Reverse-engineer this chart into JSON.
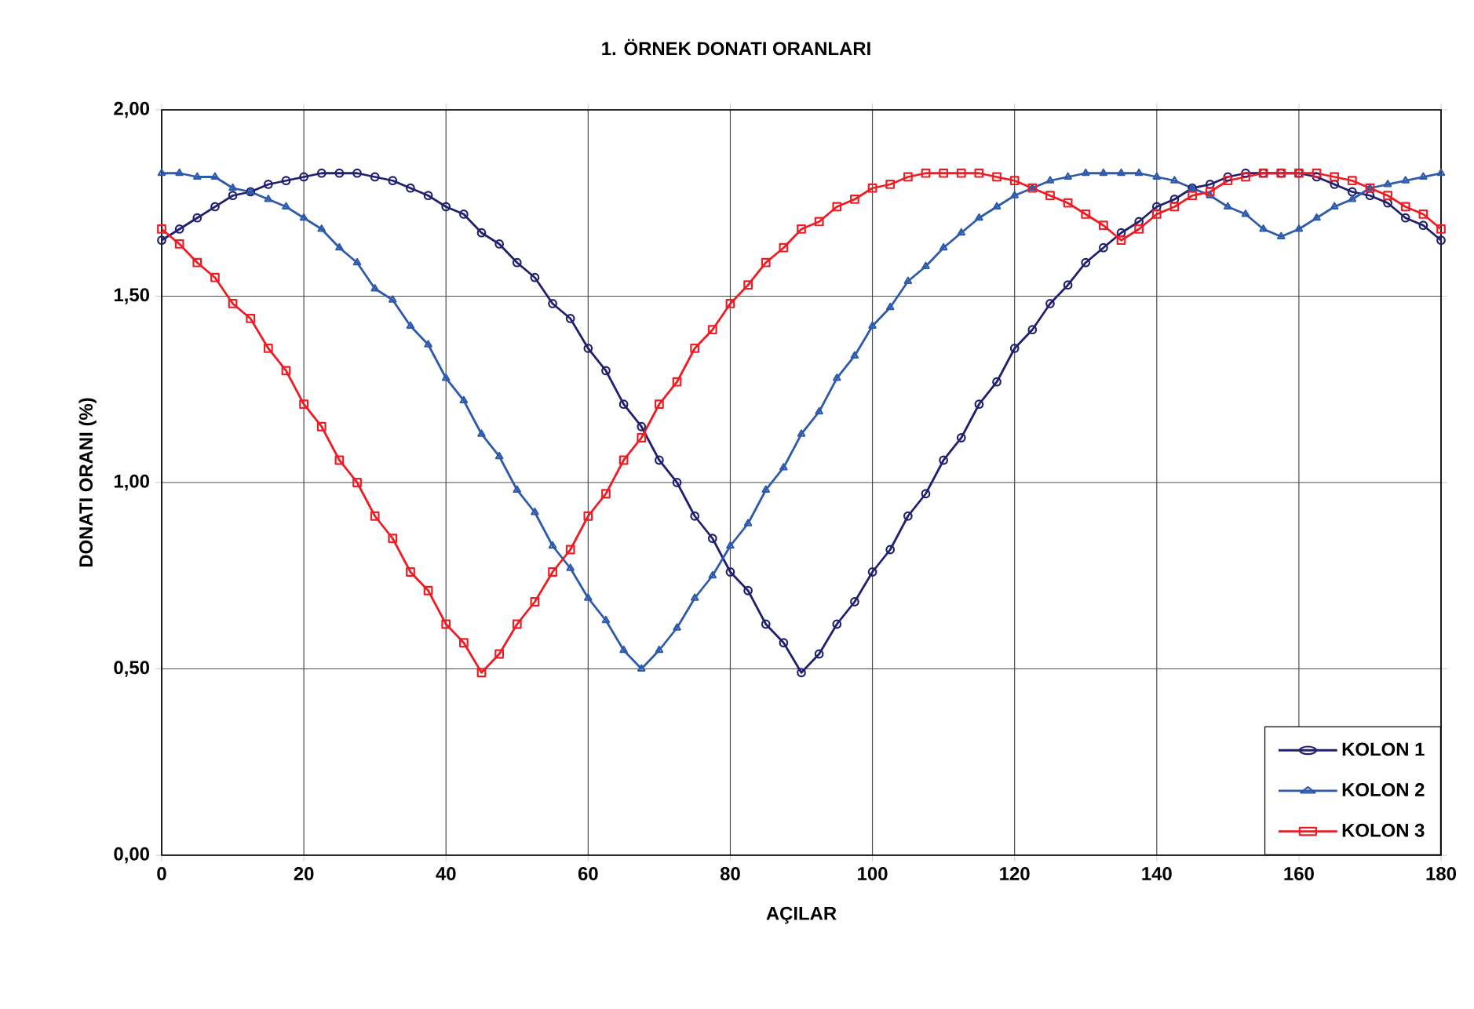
{
  "chart_data": {
    "type": "line",
    "title": "1. ÖRNEK DONATI ORANLARI",
    "xlabel": "AÇILAR",
    "ylabel": "DONATI ORANI (%)",
    "x": [
      0,
      2.5,
      5,
      7.5,
      10,
      12.5,
      15,
      17.5,
      20,
      22.5,
      25,
      27.5,
      30,
      32.5,
      35,
      37.5,
      40,
      42.5,
      45,
      47.5,
      50,
      52.5,
      55,
      57.5,
      60,
      62.5,
      65,
      67.5,
      70,
      72.5,
      75,
      77.5,
      80,
      82.5,
      85,
      87.5,
      90,
      92.5,
      95,
      97.5,
      100,
      102.5,
      105,
      107.5,
      110,
      112.5,
      115,
      117.5,
      120,
      122.5,
      125,
      127.5,
      130,
      132.5,
      135,
      137.5,
      140,
      142.5,
      145,
      147.5,
      150,
      152.5,
      155,
      157.5,
      160,
      162.5,
      165,
      167.5,
      170,
      172.5,
      175,
      177.5,
      180
    ],
    "series": [
      {
        "name": "KOLON 1",
        "color": "#202070",
        "marker": "circle",
        "values": [
          1.65,
          1.68,
          1.71,
          1.74,
          1.77,
          1.78,
          1.8,
          1.81,
          1.82,
          1.83,
          1.83,
          1.83,
          1.82,
          1.81,
          1.79,
          1.77,
          1.74,
          1.72,
          1.67,
          1.64,
          1.59,
          1.55,
          1.48,
          1.44,
          1.36,
          1.3,
          1.21,
          1.15,
          1.06,
          1.0,
          0.91,
          0.85,
          0.76,
          0.71,
          0.62,
          0.57,
          0.49,
          0.54,
          0.62,
          0.68,
          0.76,
          0.82,
          0.91,
          0.97,
          1.06,
          1.12,
          1.21,
          1.27,
          1.36,
          1.41,
          1.48,
          1.53,
          1.59,
          1.63,
          1.67,
          1.7,
          1.74,
          1.76,
          1.79,
          1.8,
          1.82,
          1.83,
          1.83,
          1.83,
          1.83,
          1.82,
          1.8,
          1.78,
          1.77,
          1.75,
          1.71,
          1.69,
          1.65
        ]
      },
      {
        "name": "KOLON 2",
        "color": "#2e5aac",
        "marker": "triangle",
        "values": [
          1.83,
          1.83,
          1.82,
          1.82,
          1.79,
          1.78,
          1.76,
          1.74,
          1.71,
          1.68,
          1.63,
          1.59,
          1.52,
          1.49,
          1.42,
          1.37,
          1.28,
          1.22,
          1.13,
          1.07,
          0.98,
          0.92,
          0.83,
          0.77,
          0.69,
          0.63,
          0.55,
          0.5,
          0.55,
          0.61,
          0.69,
          0.75,
          0.83,
          0.89,
          0.98,
          1.04,
          1.13,
          1.19,
          1.28,
          1.34,
          1.42,
          1.47,
          1.54,
          1.58,
          1.63,
          1.67,
          1.71,
          1.74,
          1.77,
          1.79,
          1.81,
          1.82,
          1.83,
          1.83,
          1.83,
          1.83,
          1.82,
          1.81,
          1.79,
          1.77,
          1.74,
          1.72,
          1.68,
          1.66,
          1.68,
          1.71,
          1.74,
          1.76,
          1.79,
          1.8,
          1.81,
          1.82,
          1.83
        ]
      },
      {
        "name": "KOLON 3",
        "color": "#ee1c24",
        "marker": "square",
        "values": [
          1.68,
          1.64,
          1.59,
          1.55,
          1.48,
          1.44,
          1.36,
          1.3,
          1.21,
          1.15,
          1.06,
          1.0,
          0.91,
          0.85,
          0.76,
          0.71,
          0.62,
          0.57,
          0.49,
          0.54,
          0.62,
          0.68,
          0.76,
          0.82,
          0.91,
          0.97,
          1.06,
          1.12,
          1.21,
          1.27,
          1.36,
          1.41,
          1.48,
          1.53,
          1.59,
          1.63,
          1.68,
          1.7,
          1.74,
          1.76,
          1.79,
          1.8,
          1.82,
          1.83,
          1.83,
          1.83,
          1.83,
          1.82,
          1.81,
          1.79,
          1.77,
          1.75,
          1.72,
          1.69,
          1.65,
          1.68,
          1.72,
          1.74,
          1.77,
          1.78,
          1.81,
          1.82,
          1.83,
          1.83,
          1.83,
          1.83,
          1.82,
          1.81,
          1.79,
          1.77,
          1.74,
          1.72,
          1.68
        ]
      }
    ],
    "xlim": [
      0,
      180
    ],
    "xticks": [
      0,
      20,
      40,
      60,
      80,
      100,
      120,
      140,
      160,
      180
    ],
    "ylim": [
      0,
      2
    ],
    "yticks": [
      {
        "value": 0,
        "label": "0,00"
      },
      {
        "value": 0.5,
        "label": "0,50"
      },
      {
        "value": 1,
        "label": "1,00"
      },
      {
        "value": 1.5,
        "label": "1,50"
      },
      {
        "value": 2,
        "label": "2,00"
      }
    ],
    "grid": true,
    "legend": "bottom right",
    "line_style": "solid"
  }
}
